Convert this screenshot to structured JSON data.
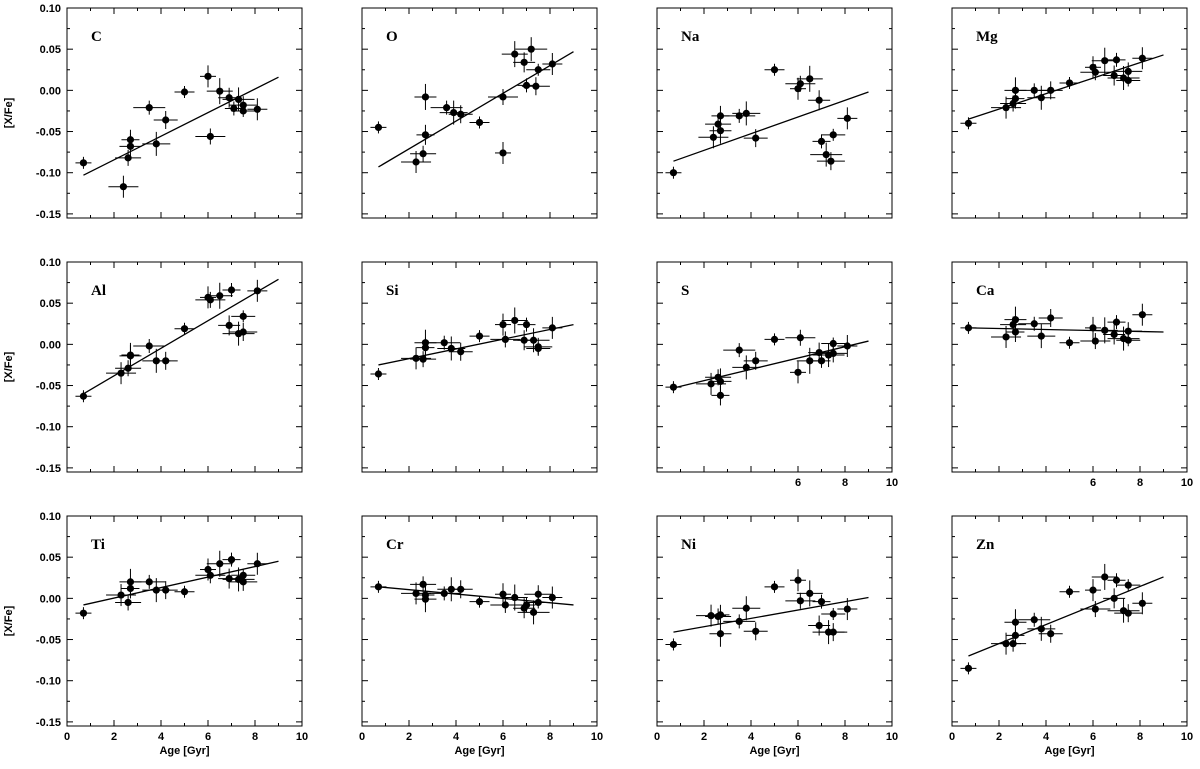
{
  "chart_data": [
    {
      "type": "scatter",
      "element": "C",
      "trend": [
        [
          0.7,
          -0.103
        ],
        [
          9,
          0.016
        ]
      ],
      "points": [
        [
          0.7,
          -0.088
        ],
        [
          2.4,
          -0.117
        ],
        [
          2.6,
          -0.082
        ],
        [
          2.7,
          -0.068
        ],
        [
          2.7,
          -0.06
        ],
        [
          3.5,
          -0.021
        ],
        [
          3.8,
          -0.065
        ],
        [
          4.2,
          -0.036
        ],
        [
          5.0,
          -0.002
        ],
        [
          6.0,
          0.017
        ],
        [
          6.1,
          -0.056
        ],
        [
          6.5,
          -0.001
        ],
        [
          6.9,
          -0.009
        ],
        [
          7.1,
          -0.022
        ],
        [
          7.3,
          -0.011
        ],
        [
          7.5,
          -0.018
        ],
        [
          7.5,
          -0.025
        ],
        [
          8.1,
          -0.023
        ]
      ]
    },
    {
      "type": "scatter",
      "element": "O",
      "trend": [
        [
          0.7,
          -0.093
        ],
        [
          9,
          0.047
        ]
      ],
      "points": [
        [
          0.7,
          -0.045
        ],
        [
          2.3,
          -0.087
        ],
        [
          2.6,
          -0.077
        ],
        [
          2.7,
          -0.008
        ],
        [
          2.7,
          -0.054
        ],
        [
          3.6,
          -0.021
        ],
        [
          3.9,
          -0.027
        ],
        [
          4.2,
          -0.029
        ],
        [
          5.0,
          -0.039
        ],
        [
          6.0,
          -0.076
        ],
        [
          6.0,
          -0.008
        ],
        [
          6.5,
          0.044
        ],
        [
          6.9,
          0.034
        ],
        [
          7.0,
          0.006
        ],
        [
          7.2,
          0.05
        ],
        [
          7.4,
          0.005
        ],
        [
          7.5,
          0.025
        ],
        [
          8.1,
          0.032
        ]
      ]
    },
    {
      "type": "scatter",
      "element": "Na",
      "trend": [
        [
          0.7,
          -0.086
        ],
        [
          9,
          -0.002
        ]
      ],
      "points": [
        [
          0.7,
          -0.1
        ],
        [
          2.4,
          -0.057
        ],
        [
          2.6,
          -0.041
        ],
        [
          2.7,
          -0.049
        ],
        [
          2.7,
          -0.031
        ],
        [
          3.5,
          -0.031
        ],
        [
          3.8,
          -0.028
        ],
        [
          4.2,
          -0.058
        ],
        [
          5.0,
          0.025
        ],
        [
          6.0,
          0.002
        ],
        [
          6.1,
          0.008
        ],
        [
          6.5,
          0.014
        ],
        [
          6.9,
          -0.012
        ],
        [
          7.0,
          -0.062
        ],
        [
          7.2,
          -0.078
        ],
        [
          7.4,
          -0.086
        ],
        [
          7.5,
          -0.054
        ],
        [
          8.1,
          -0.034
        ]
      ]
    },
    {
      "type": "scatter",
      "element": "Mg",
      "trend": [
        [
          0.7,
          -0.035
        ],
        [
          9,
          0.043
        ]
      ],
      "points": [
        [
          0.7,
          -0.04
        ],
        [
          2.3,
          -0.021
        ],
        [
          2.6,
          -0.016
        ],
        [
          2.7,
          0.0
        ],
        [
          2.7,
          -0.01
        ],
        [
          3.5,
          0.0
        ],
        [
          3.8,
          -0.009
        ],
        [
          4.2,
          0.0
        ],
        [
          5.0,
          0.009
        ],
        [
          6.0,
          0.028
        ],
        [
          6.1,
          0.022
        ],
        [
          6.5,
          0.036
        ],
        [
          6.9,
          0.018
        ],
        [
          7.0,
          0.037
        ],
        [
          7.3,
          0.015
        ],
        [
          7.5,
          0.023
        ],
        [
          7.5,
          0.012
        ],
        [
          8.1,
          0.039
        ]
      ]
    },
    {
      "type": "scatter",
      "element": "Al",
      "trend": [
        [
          0.7,
          -0.06
        ],
        [
          9,
          0.079
        ]
      ],
      "points": [
        [
          0.7,
          -0.063
        ],
        [
          2.3,
          -0.035
        ],
        [
          2.6,
          -0.029
        ],
        [
          2.7,
          -0.014
        ],
        [
          2.7,
          -0.013
        ],
        [
          3.5,
          -0.002
        ],
        [
          3.8,
          -0.02
        ],
        [
          4.2,
          -0.02
        ],
        [
          5.0,
          0.019
        ],
        [
          6.0,
          0.057
        ],
        [
          6.1,
          0.054
        ],
        [
          6.5,
          0.059
        ],
        [
          6.9,
          0.023
        ],
        [
          7.0,
          0.066
        ],
        [
          7.3,
          0.013
        ],
        [
          7.5,
          0.015
        ],
        [
          7.5,
          0.034
        ],
        [
          8.1,
          0.065
        ]
      ]
    },
    {
      "type": "scatter",
      "element": "Si",
      "trend": [
        [
          0.7,
          -0.025
        ],
        [
          9,
          0.024
        ]
      ],
      "points": [
        [
          0.7,
          -0.036
        ],
        [
          2.3,
          -0.017
        ],
        [
          2.6,
          -0.018
        ],
        [
          2.7,
          0.002
        ],
        [
          2.7,
          -0.004
        ],
        [
          3.5,
          0.002
        ],
        [
          3.8,
          -0.005
        ],
        [
          4.2,
          -0.009
        ],
        [
          5.0,
          0.01
        ],
        [
          6.0,
          0.024
        ],
        [
          6.1,
          0.006
        ],
        [
          6.5,
          0.029
        ],
        [
          6.9,
          0.005
        ],
        [
          7.0,
          0.024
        ],
        [
          7.3,
          0.005
        ],
        [
          7.5,
          -0.003
        ],
        [
          7.5,
          -0.005
        ],
        [
          8.1,
          0.02
        ]
      ]
    },
    {
      "type": "scatter",
      "element": "S",
      "trend": [
        [
          0.7,
          -0.053
        ],
        [
          9,
          0.004
        ]
      ],
      "points": [
        [
          0.7,
          -0.052
        ],
        [
          2.3,
          -0.048
        ],
        [
          2.6,
          -0.04
        ],
        [
          2.7,
          -0.045
        ],
        [
          2.7,
          -0.062
        ],
        [
          3.5,
          -0.007
        ],
        [
          3.8,
          -0.028
        ],
        [
          4.2,
          -0.02
        ],
        [
          5.0,
          0.006
        ],
        [
          6.0,
          -0.034
        ],
        [
          6.1,
          0.008
        ],
        [
          6.5,
          -0.02
        ],
        [
          6.9,
          -0.01
        ],
        [
          7.0,
          -0.02
        ],
        [
          7.3,
          -0.013
        ],
        [
          7.5,
          -0.011
        ],
        [
          7.5,
          0.001
        ],
        [
          8.1,
          -0.002
        ]
      ]
    },
    {
      "type": "scatter",
      "element": "Ca",
      "trend": [
        [
          0.7,
          0.02
        ],
        [
          9,
          0.015
        ]
      ],
      "points": [
        [
          0.7,
          0.02
        ],
        [
          2.3,
          0.009
        ],
        [
          2.6,
          0.024
        ],
        [
          2.7,
          0.03
        ],
        [
          2.7,
          0.015
        ],
        [
          3.5,
          0.025
        ],
        [
          3.8,
          0.01
        ],
        [
          4.2,
          0.032
        ],
        [
          5.0,
          0.002
        ],
        [
          6.0,
          0.02
        ],
        [
          6.1,
          0.004
        ],
        [
          6.5,
          0.017
        ],
        [
          6.9,
          0.012
        ],
        [
          7.0,
          0.027
        ],
        [
          7.3,
          0.007
        ],
        [
          7.5,
          0.016
        ],
        [
          7.5,
          0.005
        ],
        [
          8.1,
          0.036
        ]
      ]
    },
    {
      "type": "scatter",
      "element": "Ti",
      "trend": [
        [
          0.7,
          -0.008
        ],
        [
          9,
          0.045
        ]
      ],
      "points": [
        [
          0.7,
          -0.018
        ],
        [
          2.3,
          0.004
        ],
        [
          2.6,
          -0.005
        ],
        [
          2.7,
          0.02
        ],
        [
          2.7,
          0.012
        ],
        [
          3.5,
          0.02
        ],
        [
          3.8,
          0.01
        ],
        [
          4.2,
          0.01
        ],
        [
          5.0,
          0.008
        ],
        [
          6.0,
          0.035
        ],
        [
          6.1,
          0.028
        ],
        [
          6.5,
          0.042
        ],
        [
          6.9,
          0.024
        ],
        [
          7.0,
          0.047
        ],
        [
          7.3,
          0.023
        ],
        [
          7.5,
          0.02
        ],
        [
          7.5,
          0.028
        ],
        [
          8.1,
          0.042
        ]
      ]
    },
    {
      "type": "scatter",
      "element": "Cr",
      "trend": [
        [
          0.7,
          0.014
        ],
        [
          9,
          -0.008
        ]
      ],
      "points": [
        [
          0.7,
          0.014
        ],
        [
          2.3,
          0.006
        ],
        [
          2.6,
          0.017
        ],
        [
          2.7,
          -0.001
        ],
        [
          2.7,
          0.004
        ],
        [
          3.5,
          0.006
        ],
        [
          3.8,
          0.011
        ],
        [
          4.2,
          0.011
        ],
        [
          5.0,
          -0.004
        ],
        [
          6.0,
          0.005
        ],
        [
          6.1,
          -0.008
        ],
        [
          6.5,
          0.001
        ],
        [
          6.9,
          -0.012
        ],
        [
          7.0,
          -0.008
        ],
        [
          7.3,
          -0.017
        ],
        [
          7.5,
          0.005
        ],
        [
          7.5,
          -0.005
        ],
        [
          8.1,
          0.001
        ]
      ]
    },
    {
      "type": "scatter",
      "element": "Ni",
      "trend": [
        [
          0.7,
          -0.041
        ],
        [
          9,
          0.001
        ]
      ],
      "points": [
        [
          0.7,
          -0.056
        ],
        [
          2.3,
          -0.021
        ],
        [
          2.6,
          -0.022
        ],
        [
          2.7,
          -0.043
        ],
        [
          2.7,
          -0.02
        ],
        [
          3.5,
          -0.028
        ],
        [
          3.8,
          -0.012
        ],
        [
          4.2,
          -0.04
        ],
        [
          5.0,
          0.014
        ],
        [
          6.0,
          0.022
        ],
        [
          6.1,
          -0.003
        ],
        [
          6.5,
          0.006
        ],
        [
          6.9,
          -0.033
        ],
        [
          7.0,
          -0.004
        ],
        [
          7.3,
          -0.041
        ],
        [
          7.5,
          -0.041
        ],
        [
          7.5,
          -0.019
        ],
        [
          8.1,
          -0.013
        ]
      ]
    },
    {
      "type": "scatter",
      "element": "Zn",
      "trend": [
        [
          0.7,
          -0.07
        ],
        [
          9,
          0.026
        ]
      ],
      "points": [
        [
          0.7,
          -0.085
        ],
        [
          2.3,
          -0.055
        ],
        [
          2.6,
          -0.055
        ],
        [
          2.7,
          -0.029
        ],
        [
          2.7,
          -0.045
        ],
        [
          3.5,
          -0.026
        ],
        [
          3.8,
          -0.037
        ],
        [
          4.2,
          -0.043
        ],
        [
          5.0,
          0.008
        ],
        [
          6.0,
          0.01
        ],
        [
          6.1,
          -0.013
        ],
        [
          6.5,
          0.026
        ],
        [
          6.9,
          0.0
        ],
        [
          7.0,
          0.022
        ],
        [
          7.3,
          -0.015
        ],
        [
          7.5,
          -0.018
        ],
        [
          7.5,
          0.016
        ],
        [
          8.1,
          -0.006
        ]
      ]
    }
  ],
  "axes": {
    "xlim": [
      0,
      10
    ],
    "ylim": [
      -0.155,
      0.1
    ],
    "yticks": [
      "0.10",
      "0.05",
      "0.00",
      "-0.05",
      "-0.10",
      "-0.15"
    ],
    "xticks_full": [
      "0",
      "2",
      "4",
      "6",
      "8",
      "10"
    ],
    "xticks_partial": [
      "6",
      "8",
      "10"
    ],
    "ylabel": "[X/Fe]",
    "xlabel": "Age [Gyr]"
  }
}
